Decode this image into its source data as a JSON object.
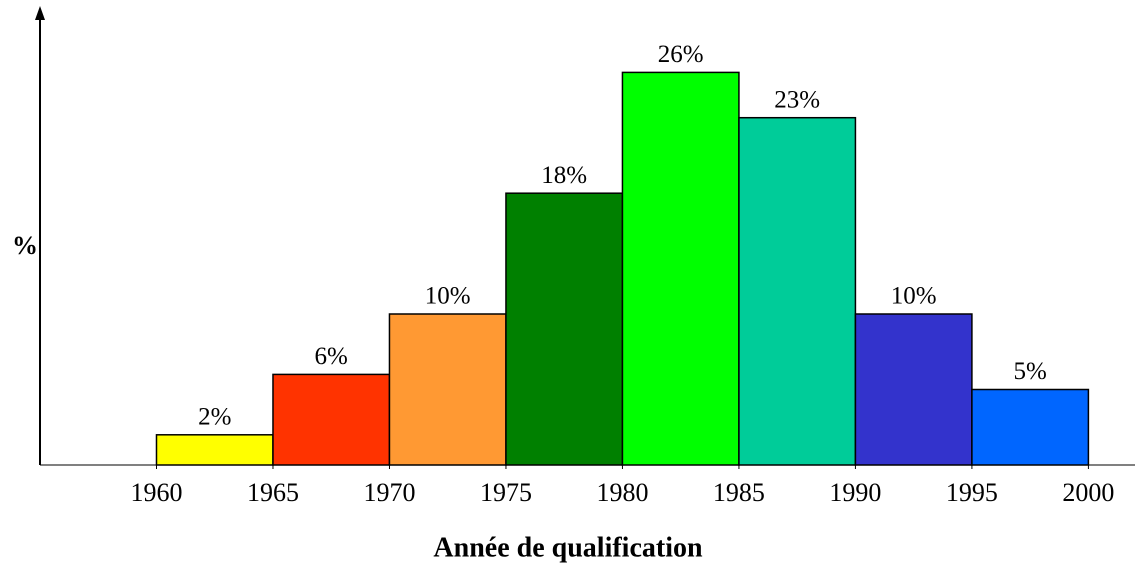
{
  "chart_data": {
    "type": "histogram",
    "x_label": "Année de qualification",
    "y_label": "%",
    "bins": [
      1960,
      1965,
      1970,
      1975,
      1980,
      1985,
      1990,
      1995,
      2000
    ],
    "values": [
      2,
      6,
      10,
      18,
      26,
      23,
      10,
      5
    ],
    "value_labels": [
      "2%",
      "6%",
      "10%",
      "18%",
      "26%",
      "23%",
      "10%",
      "5%"
    ],
    "colors": [
      "#ffff00",
      "#ff3300",
      "#ff9933",
      "#008000",
      "#00ff00",
      "#00cc99",
      "#3333cc",
      "#0066ff"
    ],
    "xlim": [
      1955,
      2002
    ],
    "xticks": [
      1960,
      1965,
      1970,
      1975,
      1980,
      1985,
      1990,
      1995,
      2000
    ],
    "ylim": [
      0,
      30
    ]
  }
}
